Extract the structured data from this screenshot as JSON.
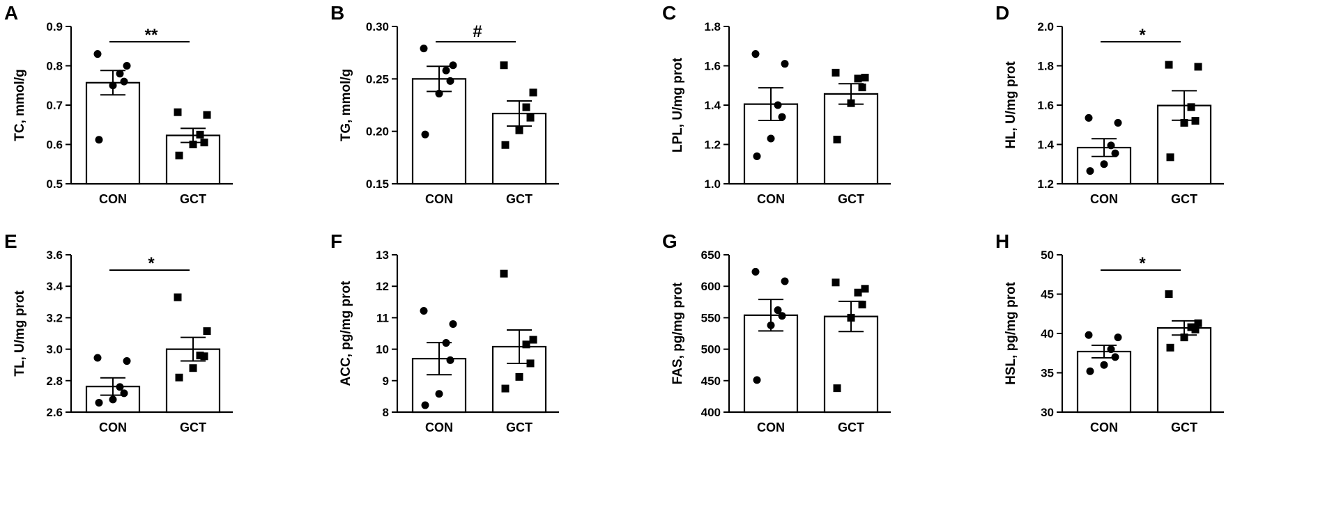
{
  "chart_data": [
    {
      "panel": "A",
      "type": "bar",
      "ylabel": "TC, mmol/g",
      "categories": [
        "CON",
        "GCT"
      ],
      "ylim": [
        0.5,
        0.9
      ],
      "yticks": [
        "0.5",
        "0.6",
        "0.7",
        "0.8",
        "0.9"
      ],
      "means": [
        0.757,
        0.623
      ],
      "sem": [
        0.031,
        0.018
      ],
      "points": [
        [
          0.83,
          0.8,
          0.78,
          0.76,
          0.75,
          0.612
        ],
        [
          0.682,
          0.675,
          0.625,
          0.605,
          0.6,
          0.572
        ]
      ],
      "significance": "**"
    },
    {
      "panel": "B",
      "type": "bar",
      "ylabel": "TG, mmol/g",
      "categories": [
        "CON",
        "GCT"
      ],
      "ylim": [
        0.15,
        0.3
      ],
      "yticks": [
        "0.15",
        "0.20",
        "0.25",
        "0.30"
      ],
      "means": [
        0.25,
        0.217
      ],
      "sem": [
        0.012,
        0.012
      ],
      "points": [
        [
          0.279,
          0.263,
          0.258,
          0.248,
          0.236,
          0.197
        ],
        [
          0.263,
          0.237,
          0.223,
          0.213,
          0.201,
          0.187
        ]
      ],
      "significance": "#"
    },
    {
      "panel": "C",
      "type": "bar",
      "ylabel": "LPL, U/mg prot",
      "categories": [
        "CON",
        "GCT"
      ],
      "ylim": [
        1.0,
        1.8
      ],
      "yticks": [
        "1.0",
        "1.2",
        "1.4",
        "1.6",
        "1.8"
      ],
      "means": [
        1.405,
        1.457
      ],
      "sem": [
        0.083,
        0.052
      ],
      "points": [
        [
          1.66,
          1.61,
          1.4,
          1.34,
          1.23,
          1.14
        ],
        [
          1.565,
          1.54,
          1.535,
          1.49,
          1.41,
          1.225
        ]
      ],
      "significance": ""
    },
    {
      "panel": "D",
      "type": "bar",
      "ylabel": "HL, U/mg prot",
      "categories": [
        "CON",
        "GCT"
      ],
      "ylim": [
        1.2,
        2.0
      ],
      "yticks": [
        "1.2",
        "1.4",
        "1.6",
        "1.8",
        "2.0"
      ],
      "means": [
        1.384,
        1.598
      ],
      "sem": [
        0.045,
        0.075
      ],
      "points": [
        [
          1.535,
          1.51,
          1.395,
          1.355,
          1.3,
          1.265
        ],
        [
          1.805,
          1.795,
          1.59,
          1.52,
          1.51,
          1.335
        ]
      ],
      "significance": "*"
    },
    {
      "panel": "E",
      "type": "bar",
      "ylabel": "TL, U/mg prot",
      "categories": [
        "CON",
        "GCT"
      ],
      "ylim": [
        2.6,
        3.6
      ],
      "yticks": [
        "2.6",
        "2.8",
        "3.0",
        "3.2",
        "3.4",
        "3.6"
      ],
      "means": [
        2.763,
        3.0
      ],
      "sem": [
        0.055,
        0.075
      ],
      "points": [
        [
          2.945,
          2.925,
          2.76,
          2.72,
          2.68,
          2.66
        ],
        [
          3.33,
          3.115,
          2.96,
          2.955,
          2.88,
          2.82
        ]
      ],
      "significance": "*"
    },
    {
      "panel": "F",
      "type": "bar",
      "ylabel": "ACC, pg/mg prot",
      "categories": [
        "CON",
        "GCT"
      ],
      "ylim": [
        8,
        13
      ],
      "yticks": [
        "8",
        "9",
        "10",
        "11",
        "12",
        "13"
      ],
      "means": [
        9.7,
        10.08
      ],
      "sem": [
        0.51,
        0.53
      ],
      "points": [
        [
          11.22,
          10.8,
          10.2,
          9.65,
          8.58,
          8.22
        ],
        [
          12.4,
          10.3,
          10.15,
          9.55,
          9.12,
          8.75
        ]
      ],
      "significance": ""
    },
    {
      "panel": "G",
      "type": "bar",
      "ylabel": "FAS, pg/mg prot",
      "categories": [
        "CON",
        "GCT"
      ],
      "ylim": [
        400,
        650
      ],
      "yticks": [
        "400",
        "450",
        "500",
        "550",
        "600",
        "650"
      ],
      "means": [
        554,
        552
      ],
      "sem": [
        25,
        24
      ],
      "points": [
        [
          623,
          608,
          562,
          553,
          538,
          451
        ],
        [
          606,
          596,
          590,
          571,
          550,
          438
        ]
      ],
      "significance": ""
    },
    {
      "panel": "H",
      "type": "bar",
      "ylabel": "HSL, pg/mg prot",
      "categories": [
        "CON",
        "GCT"
      ],
      "ylim": [
        30,
        50
      ],
      "yticks": [
        "30",
        "35",
        "40",
        "45",
        "50"
      ],
      "means": [
        37.7,
        40.7
      ],
      "sem": [
        0.8,
        0.9
      ],
      "points": [
        [
          39.8,
          39.5,
          38.0,
          37.0,
          36.0,
          35.2
        ],
        [
          45.0,
          41.3,
          40.8,
          40.5,
          39.5,
          38.2
        ]
      ],
      "significance": "*"
    }
  ]
}
